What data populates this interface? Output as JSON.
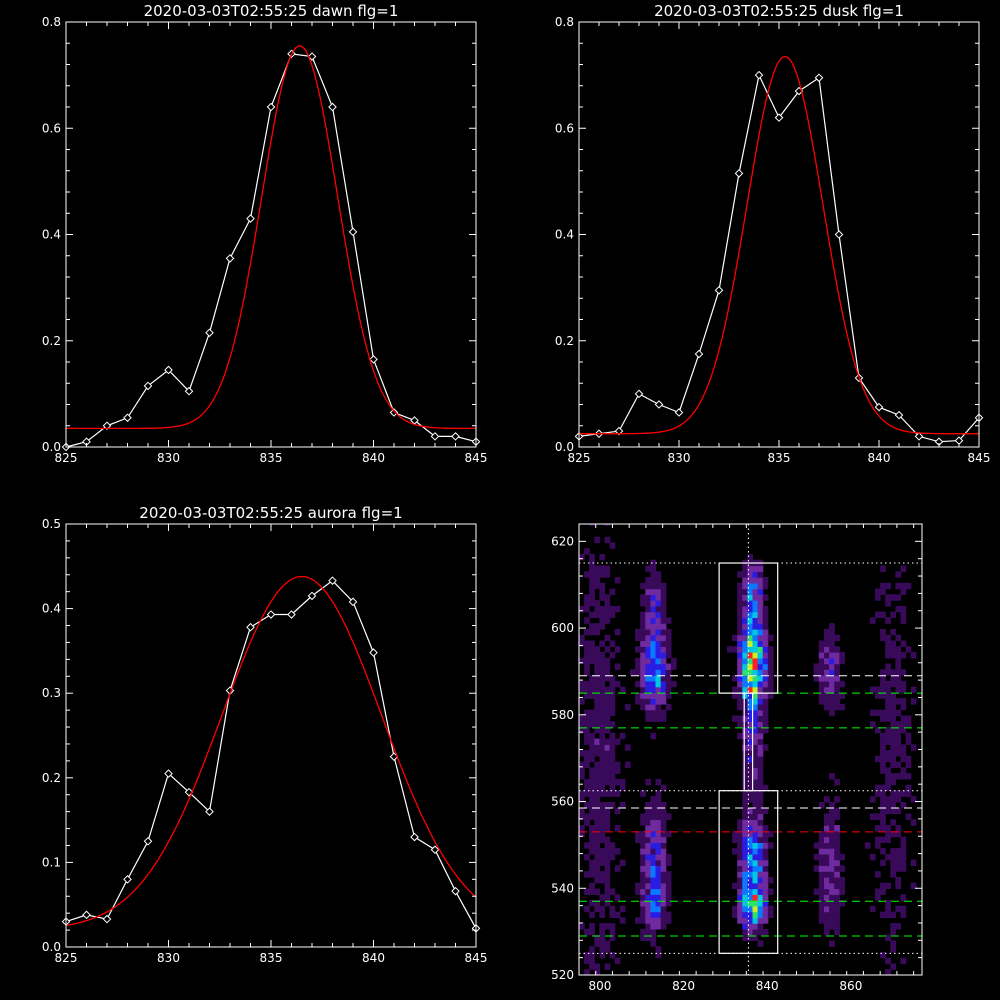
{
  "chart_data": [
    {
      "type": "line",
      "title": "2020-03-03T02:55:25 dawn flg=1",
      "xlim": [
        825,
        845
      ],
      "ylim": [
        0,
        0.8
      ],
      "xticks": [
        "825",
        "830",
        "835",
        "840",
        "845"
      ],
      "yticks": [
        "0.0",
        "0.2",
        "0.4",
        "0.6",
        "0.8"
      ],
      "series": [
        {
          "color": "#ffffff",
          "marker": "diamond",
          "x": [
            825,
            826,
            827,
            828,
            829,
            830,
            831,
            832,
            833,
            834,
            835,
            836,
            837,
            838,
            839,
            840,
            841,
            842,
            843,
            844,
            845
          ],
          "y": [
            0.0,
            0.01,
            0.04,
            0.055,
            0.115,
            0.145,
            0.105,
            0.215,
            0.355,
            0.43,
            0.64,
            0.74,
            0.735,
            0.64,
            0.405,
            0.165,
            0.065,
            0.05,
            0.02,
            0.02,
            0.01
          ]
        },
        {
          "color": "#ff0000",
          "fit": "gauss",
          "peak": 0.72,
          "center": 836.4,
          "sigma": 1.85,
          "base": 0.035
        }
      ]
    },
    {
      "type": "line",
      "title": "2020-03-03T02:55:25 dusk flg=1",
      "xlim": [
        825,
        845
      ],
      "ylim": [
        0,
        0.8
      ],
      "xticks": [
        "825",
        "830",
        "835",
        "840",
        "845"
      ],
      "yticks": [
        "0.0",
        "0.2",
        "0.4",
        "0.6",
        "0.8"
      ],
      "series": [
        {
          "color": "#ffffff",
          "marker": "diamond",
          "x": [
            825,
            826,
            827,
            828,
            829,
            830,
            831,
            832,
            833,
            834,
            835,
            836,
            837,
            838,
            839,
            840,
            841,
            842,
            843,
            844,
            845
          ],
          "y": [
            0.02,
            0.025,
            0.03,
            0.1,
            0.08,
            0.065,
            0.175,
            0.295,
            0.515,
            0.7,
            0.62,
            0.67,
            0.695,
            0.4,
            0.13,
            0.075,
            0.06,
            0.02,
            0.01,
            0.012,
            0.055
          ]
        },
        {
          "color": "#ff0000",
          "fit": "gauss",
          "peak": 0.71,
          "center": 835.3,
          "sigma": 1.9,
          "base": 0.025
        }
      ]
    },
    {
      "type": "line",
      "title": "2020-03-03T02:55:25 aurora flg=1",
      "xlim": [
        825,
        845
      ],
      "ylim": [
        0,
        0.5
      ],
      "xticks": [
        "825",
        "830",
        "835",
        "840",
        "845"
      ],
      "yticks": [
        "0.0",
        "0.1",
        "0.2",
        "0.3",
        "0.4",
        "0.5"
      ],
      "series": [
        {
          "color": "#ffffff",
          "marker": "diamond",
          "x": [
            825,
            826,
            827,
            828,
            829,
            830,
            831,
            832,
            833,
            834,
            835,
            836,
            837,
            838,
            839,
            840,
            841,
            842,
            843,
            844,
            845
          ],
          "y": [
            0.03,
            0.038,
            0.033,
            0.08,
            0.125,
            0.205,
            0.183,
            0.16,
            0.303,
            0.378,
            0.393,
            0.393,
            0.415,
            0.433,
            0.408,
            0.348,
            0.225,
            0.13,
            0.115,
            0.066,
            0.022
          ]
        },
        {
          "color": "#ff0000",
          "fit": "gauss",
          "peak": 0.418,
          "center": 836.5,
          "sigma": 3.9,
          "base": 0.02
        }
      ]
    },
    {
      "type": "heatmap",
      "xlim": [
        795,
        877
      ],
      "ylim": [
        520,
        624
      ],
      "xticks": [
        "800",
        "820",
        "840",
        "860"
      ],
      "yticks": [
        "520",
        "540",
        "560",
        "580",
        "600",
        "620"
      ],
      "colormap": [
        "#000000",
        "#3a0a5a",
        "#6f2a9f",
        "#2a1ce0",
        "#0a78ff",
        "#00c8e0",
        "#2ee070",
        "#c8f020",
        "#ff2020"
      ],
      "boxes": [
        {
          "x": [
            828.5,
            842.5
          ],
          "y": [
            585,
            615
          ],
          "color": "#ffffff"
        },
        {
          "x": [
            828.5,
            842.5
          ],
          "y": [
            525,
            562.5
          ],
          "color": "#ffffff"
        },
        {
          "x": [
            834.5,
            836.5
          ],
          "y": [
            562.5,
            585
          ],
          "color": "#ffffff"
        }
      ],
      "hlines": [
        {
          "y": 615,
          "color": "#ffffff",
          "style": "dotted"
        },
        {
          "y": 589,
          "color": "#ffffff",
          "style": "dashed"
        },
        {
          "y": 585,
          "color": "#00ff00",
          "style": "dashed"
        },
        {
          "y": 577,
          "color": "#00ff00",
          "style": "dashed"
        },
        {
          "y": 562.5,
          "color": "#ffffff",
          "style": "dotted"
        },
        {
          "y": 558.5,
          "color": "#ffffff",
          "style": "dashed"
        },
        {
          "y": 553,
          "color": "#ff0000",
          "style": "dashed"
        },
        {
          "y": 537,
          "color": "#00ff00",
          "style": "dashed"
        },
        {
          "y": 529,
          "color": "#00ff00",
          "style": "dashed"
        },
        {
          "y": 525,
          "color": "#ffffff",
          "style": "dotted"
        }
      ],
      "vlines": [
        {
          "x": 835.5,
          "color": "#ffffff",
          "style": "dotted"
        }
      ],
      "sources": [
        {
          "x": 836.5,
          "y": 592,
          "sx": 2.2,
          "sy": 7,
          "amp": 0.9
        },
        {
          "x": 836.5,
          "y": 587,
          "sx": 1.6,
          "sy": 2,
          "amp": 0.25
        },
        {
          "x": 836.5,
          "y": 608,
          "sx": 1.8,
          "sy": 5,
          "amp": 0.45
        },
        {
          "x": 836.5,
          "y": 548,
          "sx": 2.2,
          "sy": 6,
          "amp": 0.55
        },
        {
          "x": 836.5,
          "y": 536,
          "sx": 2.0,
          "sy": 4,
          "amp": 0.75
        },
        {
          "x": 836.5,
          "y": 572,
          "sx": 1.8,
          "sy": 8,
          "amp": 0.3
        },
        {
          "x": 813,
          "y": 590,
          "sx": 2.2,
          "sy": 6,
          "amp": 0.6
        },
        {
          "x": 813,
          "y": 605,
          "sx": 1.8,
          "sy": 6,
          "amp": 0.3
        },
        {
          "x": 813,
          "y": 545,
          "sx": 2.2,
          "sy": 10,
          "amp": 0.4
        },
        {
          "x": 813,
          "y": 536,
          "sx": 2.0,
          "sy": 3,
          "amp": 0.25
        },
        {
          "x": 855,
          "y": 590,
          "sx": 1.8,
          "sy": 6,
          "amp": 0.35
        },
        {
          "x": 855,
          "y": 545,
          "sx": 2.0,
          "sy": 10,
          "amp": 0.3
        },
        {
          "x": 800,
          "y": 570,
          "sx": 4,
          "sy": 40,
          "amp": 0.15
        },
        {
          "x": 870,
          "y": 570,
          "sx": 4,
          "sy": 40,
          "amp": 0.12
        }
      ],
      "pixel": {
        "dx": 1.22,
        "dy": 1.33
      }
    }
  ]
}
